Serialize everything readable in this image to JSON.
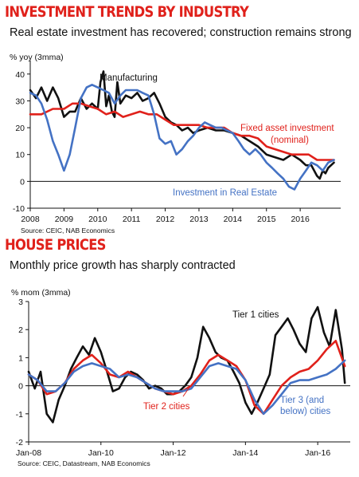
{
  "section1": {
    "title": "INVESTMENT TRENDS BY INDUSTRY",
    "subtitle": "Real estate investment has recovered; construction remains strong",
    "source": "Source: CEIC, NAB Economics"
  },
  "section2": {
    "title": "HOUSE PRICES",
    "subtitle": "Monthly price growth has sharply contracted",
    "source": "Source: CEIC, Datastream, NAB Economics"
  },
  "chart_data": [
    {
      "type": "line",
      "ylabel": "% yoy (3mma)",
      "ylim": [
        -10,
        45
      ],
      "xlim": [
        2008,
        2017.2
      ],
      "yticks": [
        -10,
        0,
        10,
        20,
        30,
        40
      ],
      "xticks": [
        "2008",
        "2009",
        "2010",
        "2011",
        "2012",
        "2013",
        "2014",
        "2015",
        "2016"
      ],
      "grid": false,
      "series": [
        {
          "name": "Manufacturing",
          "color": "#111111",
          "x": [
            2008,
            2008.17,
            2008.33,
            2008.5,
            2008.67,
            2008.83,
            2009,
            2009.17,
            2009.33,
            2009.5,
            2009.67,
            2009.83,
            2010,
            2010.08,
            2010.17,
            2010.25,
            2010.33,
            2010.42,
            2010.5,
            2010.58,
            2010.67,
            2010.83,
            2011,
            2011.17,
            2011.33,
            2011.5,
            2011.67,
            2011.83,
            2012,
            2012.17,
            2012.33,
            2012.5,
            2012.67,
            2012.83,
            2013,
            2013.25,
            2013.5,
            2013.75,
            2014,
            2014.25,
            2014.5,
            2014.75,
            2015,
            2015.25,
            2015.5,
            2015.75,
            2016,
            2016.17,
            2016.33,
            2016.5,
            2016.58,
            2016.67,
            2016.75,
            2016.83,
            2017
          ],
          "y": [
            34,
            31,
            35,
            30,
            35,
            31,
            24,
            26,
            26,
            31,
            27,
            29,
            27,
            37,
            41,
            28,
            32,
            26,
            24,
            37,
            29,
            32,
            31,
            33,
            30,
            31,
            33,
            29,
            24,
            22,
            21,
            19,
            20,
            18,
            19,
            20,
            19,
            19,
            18,
            17,
            15,
            13,
            10,
            9,
            8,
            10,
            8,
            6,
            6,
            2,
            1,
            4,
            3,
            5,
            7
          ]
        },
        {
          "name": "Fixed asset investment (nominal)",
          "color": "#e0211b",
          "x": [
            2008,
            2008.33,
            2008.67,
            2009,
            2009.25,
            2009.5,
            2009.75,
            2010,
            2010.25,
            2010.5,
            2010.75,
            2011,
            2011.25,
            2011.5,
            2011.75,
            2012,
            2012.25,
            2012.5,
            2012.75,
            2013,
            2013.25,
            2013.5,
            2013.75,
            2014,
            2014.25,
            2014.5,
            2014.75,
            2015,
            2015.25,
            2015.5,
            2015.75,
            2016,
            2016.25,
            2016.5,
            2016.75,
            2017
          ],
          "y": [
            25,
            25,
            27,
            27,
            29,
            29,
            28,
            27,
            25,
            26,
            24,
            25,
            26,
            25,
            25,
            23,
            21,
            21,
            21,
            21,
            20,
            20,
            20,
            18,
            17,
            17,
            16,
            13,
            12,
            11,
            10,
            10,
            10,
            8,
            8,
            8
          ]
        },
        {
          "name": "Investment in Real Estate",
          "color": "#4472c4",
          "x": [
            2008,
            2008.17,
            2008.33,
            2008.5,
            2008.67,
            2008.83,
            2009,
            2009.17,
            2009.33,
            2009.5,
            2009.67,
            2009.83,
            2010,
            2010.17,
            2010.33,
            2010.5,
            2010.67,
            2010.83,
            2011,
            2011.17,
            2011.33,
            2011.5,
            2011.67,
            2011.83,
            2012,
            2012.17,
            2012.33,
            2012.5,
            2012.67,
            2012.83,
            2013,
            2013.17,
            2013.33,
            2013.5,
            2013.67,
            2013.83,
            2014,
            2014.17,
            2014.33,
            2014.5,
            2014.67,
            2014.83,
            2015,
            2015.17,
            2015.33,
            2015.5,
            2015.67,
            2015.83,
            2016,
            2016.17,
            2016.33,
            2016.5,
            2016.67,
            2016.83,
            2017
          ],
          "y": [
            33,
            32,
            29,
            23,
            15,
            10,
            4,
            10,
            20,
            31,
            35,
            36,
            35,
            34,
            33,
            29,
            32,
            34,
            34,
            34,
            33,
            32,
            25,
            16,
            14,
            15,
            10,
            12,
            15,
            17,
            20,
            22,
            21,
            20,
            20,
            19,
            18,
            15,
            12,
            10,
            12,
            10,
            7,
            5,
            3,
            1,
            -2,
            -3,
            1,
            4,
            7,
            6,
            4,
            7,
            8
          ]
        }
      ],
      "annotations": [
        "Manufacturing",
        "Fixed asset investment",
        "(nominal)",
        "Investment in Real Estate"
      ]
    },
    {
      "type": "line",
      "ylabel": "% mom (3mma)",
      "ylim": [
        -2,
        3
      ],
      "xlim": [
        2008.0,
        2016.9
      ],
      "yticks": [
        -2,
        -1,
        0,
        1,
        2,
        3
      ],
      "xticks": [
        "Jan-08",
        "Jan-10",
        "Jan-12",
        "Jan-14",
        "Jan-16"
      ],
      "grid": false,
      "series": [
        {
          "name": "Tier 1 cities",
          "color": "#111111",
          "x": [
            2008,
            2008.17,
            2008.33,
            2008.5,
            2008.67,
            2008.83,
            2009,
            2009.17,
            2009.33,
            2009.5,
            2009.67,
            2009.83,
            2010,
            2010.17,
            2010.33,
            2010.5,
            2010.67,
            2010.83,
            2011,
            2011.17,
            2011.33,
            2011.5,
            2011.67,
            2011.83,
            2012,
            2012.17,
            2012.33,
            2012.5,
            2012.67,
            2012.83,
            2013,
            2013.17,
            2013.33,
            2013.5,
            2013.67,
            2013.83,
            2014,
            2014.17,
            2014.33,
            2014.5,
            2014.67,
            2014.83,
            2015,
            2015.17,
            2015.33,
            2015.5,
            2015.67,
            2015.83,
            2016,
            2016.17,
            2016.33,
            2016.5,
            2016.67,
            2016.75
          ],
          "y": [
            0.5,
            -0.1,
            0.5,
            -1.0,
            -1.3,
            -0.5,
            0.0,
            0.6,
            1.0,
            1.4,
            1.1,
            1.7,
            1.2,
            0.5,
            -0.2,
            -0.1,
            0.3,
            0.5,
            0.4,
            0.2,
            -0.1,
            0.0,
            -0.1,
            -0.3,
            -0.3,
            -0.2,
            0.0,
            0.3,
            1.0,
            2.1,
            1.7,
            1.2,
            1.0,
            0.9,
            0.5,
            0.1,
            -0.6,
            -1.0,
            -0.6,
            -0.1,
            0.4,
            1.8,
            2.1,
            2.4,
            2.0,
            1.5,
            1.2,
            2.4,
            2.8,
            1.9,
            1.4,
            2.7,
            1.3,
            0.1
          ]
        },
        {
          "name": "Tier 2 cities",
          "color": "#e0211b",
          "x": [
            2008,
            2008.25,
            2008.5,
            2008.75,
            2009,
            2009.25,
            2009.5,
            2009.75,
            2010,
            2010.25,
            2010.5,
            2010.75,
            2011,
            2011.25,
            2011.5,
            2011.75,
            2012,
            2012.25,
            2012.5,
            2012.75,
            2013,
            2013.25,
            2013.5,
            2013.75,
            2014,
            2014.25,
            2014.5,
            2014.75,
            2015,
            2015.25,
            2015.5,
            2015.75,
            2016,
            2016.25,
            2016.5,
            2016.75
          ],
          "y": [
            0.4,
            0.2,
            -0.3,
            -0.2,
            0.1,
            0.6,
            0.9,
            1.1,
            0.8,
            0.4,
            0.3,
            0.5,
            0.3,
            0.1,
            -0.1,
            -0.2,
            -0.3,
            -0.2,
            0.0,
            0.4,
            0.9,
            1.1,
            0.9,
            0.7,
            0.2,
            -0.7,
            -1.0,
            -0.5,
            0.0,
            0.3,
            0.5,
            0.6,
            0.9,
            1.3,
            1.6,
            0.7
          ]
        },
        {
          "name": "Tier 3 (and below) cities",
          "color": "#4472c4",
          "x": [
            2008,
            2008.25,
            2008.5,
            2008.75,
            2009,
            2009.25,
            2009.5,
            2009.75,
            2010,
            2010.25,
            2010.5,
            2010.75,
            2011,
            2011.25,
            2011.5,
            2011.75,
            2012,
            2012.25,
            2012.5,
            2012.75,
            2013,
            2013.25,
            2013.5,
            2013.75,
            2014,
            2014.25,
            2014.5,
            2014.75,
            2015,
            2015.25,
            2015.5,
            2015.75,
            2016,
            2016.25,
            2016.5,
            2016.75
          ],
          "y": [
            0.4,
            0.2,
            -0.2,
            -0.2,
            0.1,
            0.5,
            0.7,
            0.8,
            0.7,
            0.6,
            0.3,
            0.4,
            0.3,
            0.1,
            -0.1,
            -0.2,
            -0.2,
            -0.2,
            -0.1,
            0.3,
            0.7,
            0.8,
            0.7,
            0.6,
            0.2,
            -0.5,
            -1.0,
            -0.7,
            -0.3,
            0.1,
            0.2,
            0.2,
            0.3,
            0.4,
            0.6,
            0.9
          ]
        }
      ],
      "annotations": [
        "Tier 1 cities",
        "Tier 2 cities",
        "Tier 3 (and",
        "below) cities"
      ]
    }
  ]
}
